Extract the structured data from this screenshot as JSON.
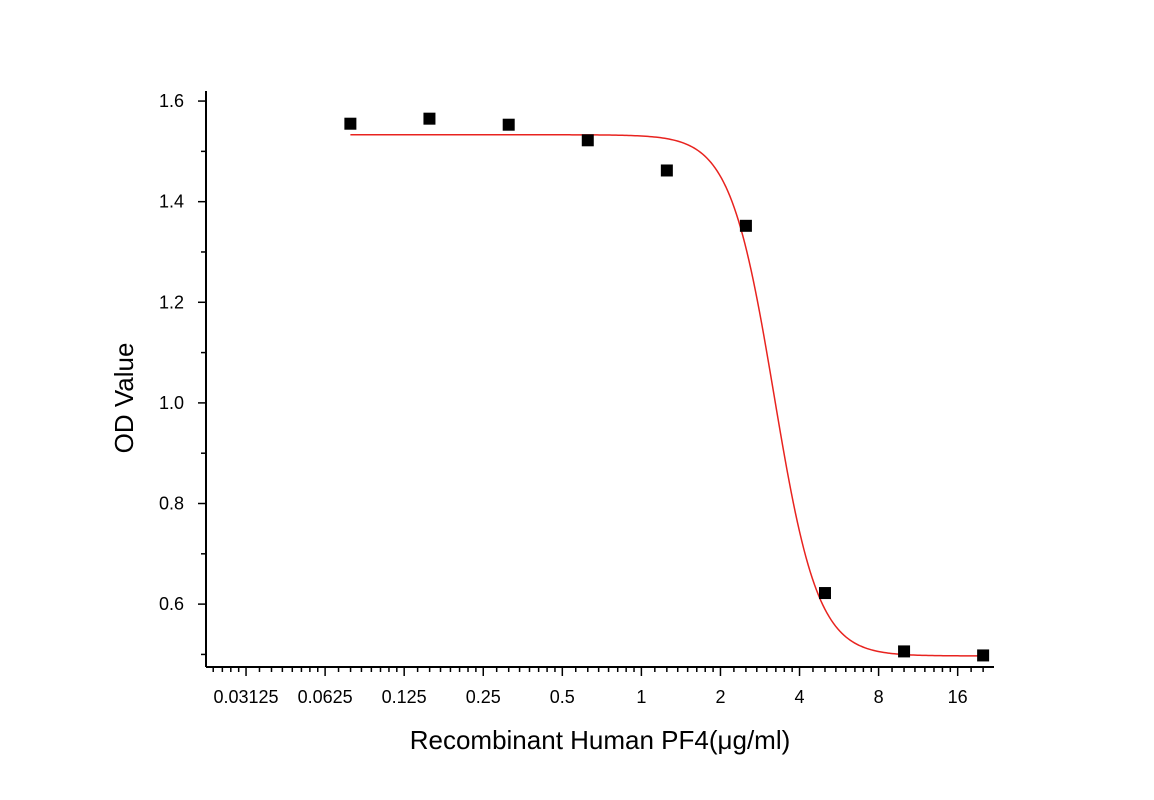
{
  "chart_data": {
    "type": "scatter",
    "title": "",
    "xlabel": "Recombinant Human PF4(μg/ml)",
    "ylabel": "OD Value",
    "xscale": "log2",
    "xlim": [
      0.022,
      22
    ],
    "ylim": [
      0.475,
      1.62
    ],
    "grid": false,
    "x_tick_labels": [
      "0.03125",
      "0.0625",
      "0.125",
      "0.25",
      "0.5",
      "1",
      "2",
      "4",
      "8",
      "16"
    ],
    "x_ticks": [
      0.03125,
      0.0625,
      0.125,
      0.25,
      0.5,
      1,
      2,
      4,
      8,
      16
    ],
    "y_tick_labels": [
      "0.6",
      "0.8",
      "1.0",
      "1.2",
      "1.4",
      "1.6"
    ],
    "y_ticks": [
      0.6,
      0.8,
      1.0,
      1.2,
      1.4,
      1.6
    ],
    "series": [
      {
        "type": "scatter",
        "marker": "square",
        "color": "#000000",
        "x": [
          0.078,
          0.156,
          0.3125,
          0.625,
          1.25,
          2.5,
          5,
          10,
          20
        ],
        "y": [
          1.555,
          1.565,
          1.553,
          1.522,
          1.462,
          1.352,
          0.622,
          0.506,
          0.498
        ]
      },
      {
        "type": "line",
        "color": "#e8231f",
        "fit": "4PL",
        "top": 1.533,
        "bottom": 0.497,
        "ec50": 3.2,
        "hill": 5.2,
        "x_range": [
          0.078,
          20
        ]
      }
    ]
  }
}
